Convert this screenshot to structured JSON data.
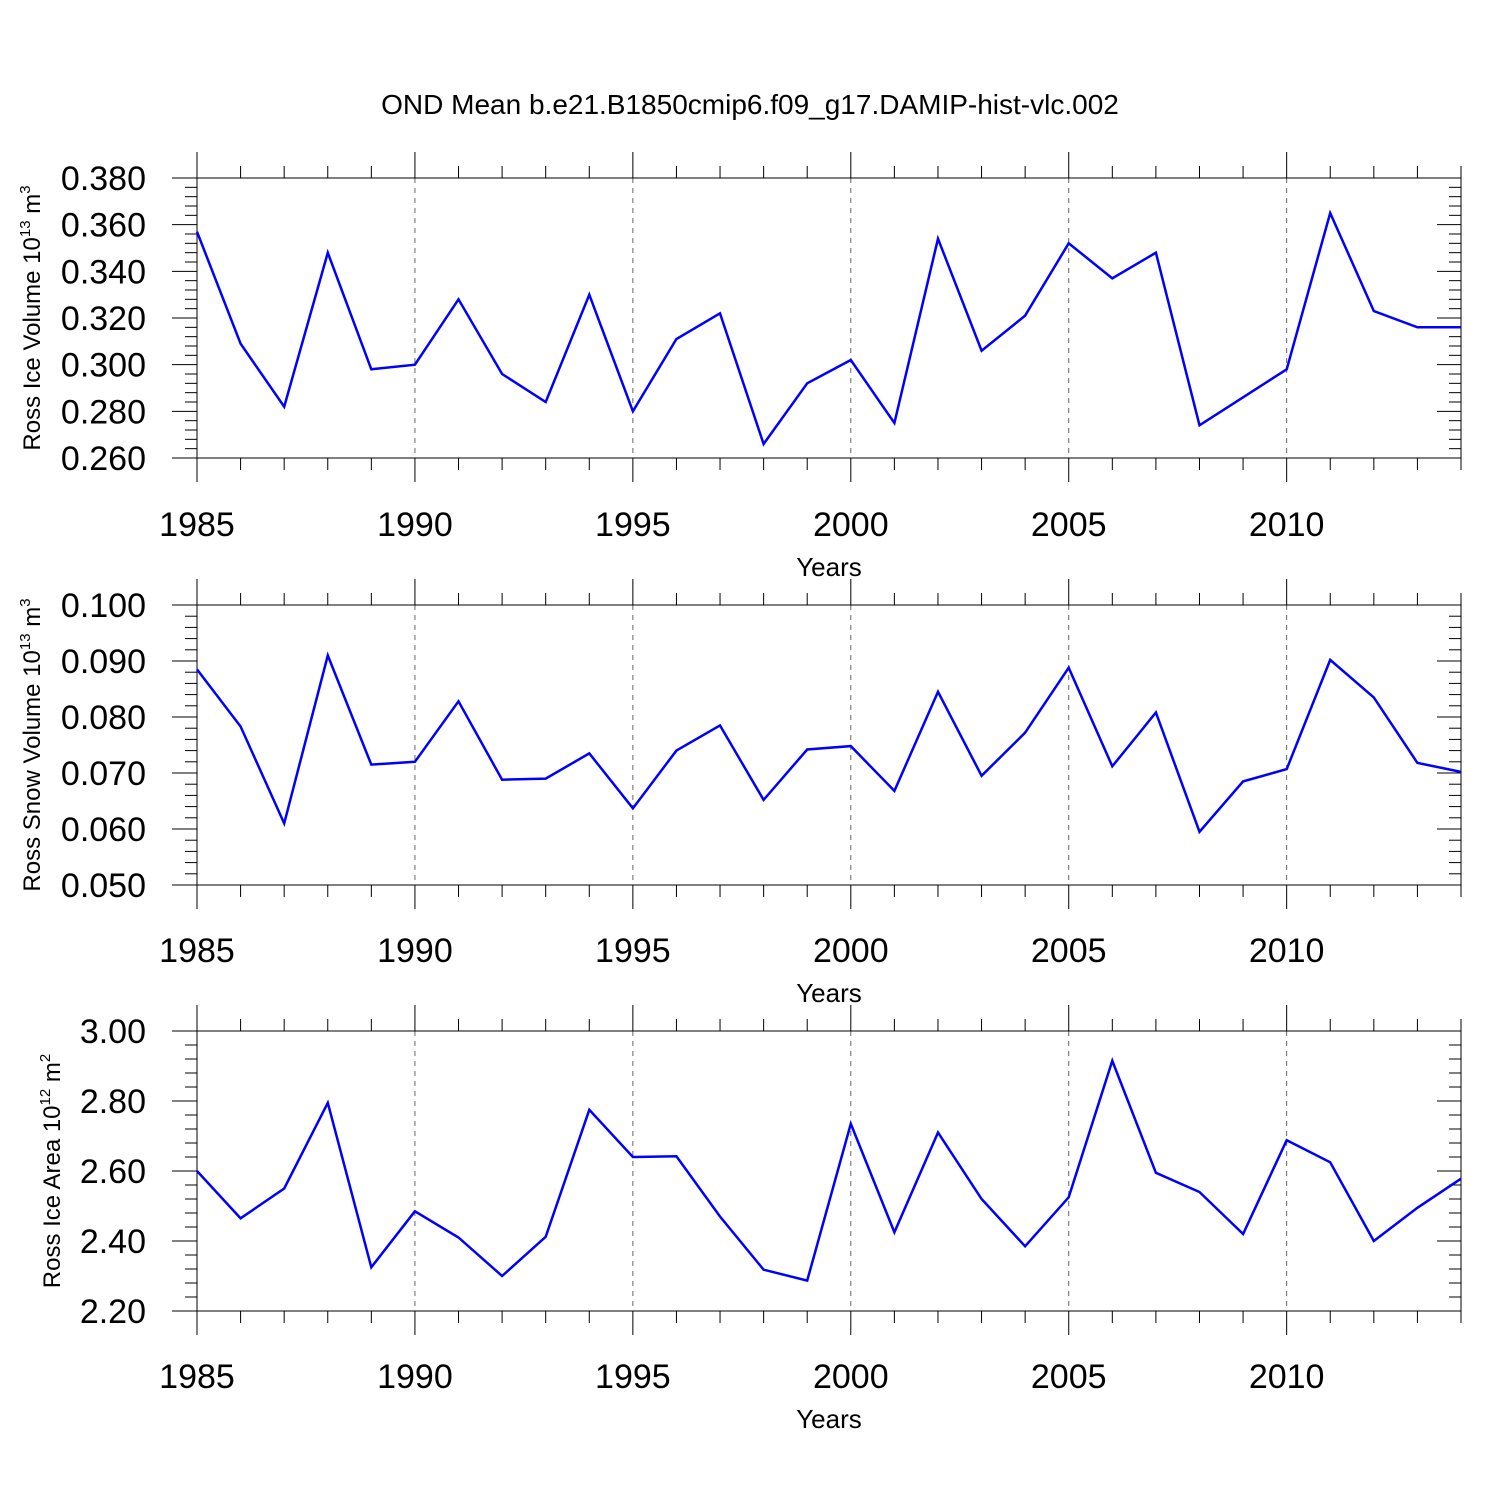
{
  "title": "OND Mean b.e21.B1850cmip6.f09_g17.DAMIP-hist-vlc.002",
  "colors": {
    "series": "#0000ff",
    "axis": "#000000",
    "grid": "#666666"
  },
  "chart_data": [
    {
      "type": "line",
      "id": "ice-volume",
      "ylabel_main": "Ross Ice Volume 10",
      "ylabel_exp": "13",
      "ylabel_unit": " m",
      "ylabel_unit_exp": "3",
      "xlabel": "Years",
      "xlim": [
        1985,
        2014
      ],
      "ylim": [
        0.26,
        0.38
      ],
      "yticks": [
        0.26,
        0.28,
        0.3,
        0.32,
        0.34,
        0.36,
        0.38
      ],
      "ytick_labels": [
        "0.260",
        "0.280",
        "0.300",
        "0.320",
        "0.340",
        "0.360",
        "0.380"
      ],
      "xticks": [
        1985,
        1990,
        1995,
        2000,
        2005,
        2010
      ],
      "xtick_labels": [
        "1985",
        "1990",
        "1995",
        "2000",
        "2005",
        "2010"
      ],
      "grid_x": [
        1990,
        1995,
        2000,
        2005,
        2010
      ],
      "x": [
        1985,
        1986,
        1987,
        1988,
        1989,
        1990,
        1991,
        1992,
        1993,
        1994,
        1995,
        1996,
        1997,
        1998,
        1999,
        2000,
        2001,
        2002,
        2003,
        2004,
        2005,
        2006,
        2007,
        2008,
        2009,
        2010,
        2011,
        2012,
        2013,
        2014
      ],
      "values": [
        0.357,
        0.309,
        0.282,
        0.348,
        0.298,
        0.3,
        0.328,
        0.296,
        0.284,
        0.33,
        0.28,
        0.311,
        0.322,
        0.266,
        0.292,
        0.302,
        0.275,
        0.354,
        0.306,
        0.321,
        0.352,
        0.337,
        0.348,
        0.274,
        0.286,
        0.298,
        0.365,
        0.323,
        0.316,
        0.316
      ]
    },
    {
      "type": "line",
      "id": "snow-volume",
      "ylabel_main": "Ross Snow Volume 10",
      "ylabel_exp": "13",
      "ylabel_unit": " m",
      "ylabel_unit_exp": "3",
      "xlabel": "Years",
      "xlim": [
        1985,
        2014
      ],
      "ylim": [
        0.05,
        0.1
      ],
      "yticks": [
        0.05,
        0.06,
        0.07,
        0.08,
        0.09,
        0.1
      ],
      "ytick_labels": [
        "0.050",
        "0.060",
        "0.070",
        "0.080",
        "0.090",
        "0.100"
      ],
      "xticks": [
        1985,
        1990,
        1995,
        2000,
        2005,
        2010
      ],
      "xtick_labels": [
        "1985",
        "1990",
        "1995",
        "2000",
        "2005",
        "2010"
      ],
      "grid_x": [
        1990,
        1995,
        2000,
        2005,
        2010
      ],
      "x": [
        1985,
        1986,
        1987,
        1988,
        1989,
        1990,
        1991,
        1992,
        1993,
        1994,
        1995,
        1996,
        1997,
        1998,
        1999,
        2000,
        2001,
        2002,
        2003,
        2004,
        2005,
        2006,
        2007,
        2008,
        2009,
        2010,
        2011,
        2012,
        2013,
        2014
      ],
      "values": [
        0.0885,
        0.0783,
        0.061,
        0.091,
        0.0715,
        0.072,
        0.0828,
        0.0688,
        0.069,
        0.0735,
        0.0637,
        0.074,
        0.0785,
        0.0652,
        0.0742,
        0.0748,
        0.0668,
        0.0845,
        0.0695,
        0.0772,
        0.0888,
        0.0712,
        0.0808,
        0.0595,
        0.0685,
        0.0707,
        0.0902,
        0.0835,
        0.0718,
        0.0702
      ]
    },
    {
      "type": "line",
      "id": "ice-area",
      "ylabel_main": "Ross Ice Area 10",
      "ylabel_exp": "12",
      "ylabel_unit": " m",
      "ylabel_unit_exp": "2",
      "xlabel": "Years",
      "xlim": [
        1985,
        2014
      ],
      "ylim": [
        2.2,
        3.0
      ],
      "yticks": [
        2.2,
        2.4,
        2.6,
        2.8,
        3.0
      ],
      "ytick_labels": [
        "2.20",
        "2.40",
        "2.60",
        "2.80",
        "3.00"
      ],
      "xticks": [
        1985,
        1990,
        1995,
        2000,
        2005,
        2010
      ],
      "xtick_labels": [
        "1985",
        "1990",
        "1995",
        "2000",
        "2005",
        "2010"
      ],
      "grid_x": [
        1990,
        1995,
        2000,
        2005,
        2010
      ],
      "x": [
        1985,
        1986,
        1987,
        1988,
        1989,
        1990,
        1991,
        1992,
        1993,
        1994,
        1995,
        1996,
        1997,
        1998,
        1999,
        2000,
        2001,
        2002,
        2003,
        2004,
        2005,
        2006,
        2007,
        2008,
        2009,
        2010,
        2011,
        2012,
        2013,
        2014
      ],
      "values": [
        2.6,
        2.465,
        2.55,
        2.795,
        2.325,
        2.485,
        2.41,
        2.3,
        2.412,
        2.775,
        2.64,
        2.642,
        2.47,
        2.318,
        2.287,
        2.735,
        2.425,
        2.71,
        2.52,
        2.385,
        2.525,
        2.915,
        2.595,
        2.54,
        2.42,
        2.688,
        2.625,
        2.4,
        2.495,
        2.578
      ]
    }
  ]
}
